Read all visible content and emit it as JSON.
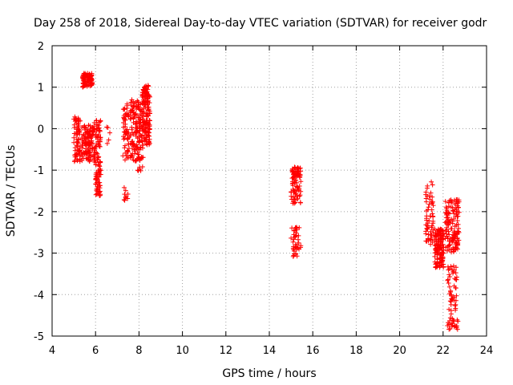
{
  "chart_data": {
    "type": "scatter",
    "title": "Day 258 of 2018, Sidereal Day-to-day VTEC variation (SDTVAR) for receiver godr",
    "xlabel": "GPS time / hours",
    "ylabel": "SDTVAR / TECUs",
    "xlim": [
      4,
      24
    ],
    "ylim": [
      -5,
      2
    ],
    "xticks": [
      4,
      6,
      8,
      10,
      12,
      14,
      16,
      18,
      20,
      22,
      24
    ],
    "yticks": [
      -5,
      -4,
      -3,
      -2,
      -1,
      0,
      1,
      2
    ],
    "grid": true,
    "marker": "+",
    "color": "#ff0000",
    "clusters": [
      {
        "x": [
          5.0,
          5.3
        ],
        "y": [
          -0.8,
          0.3
        ],
        "n": 70
      },
      {
        "x": [
          5.35,
          5.9
        ],
        "y": [
          -0.8,
          0.1
        ],
        "n": 110
      },
      {
        "x": [
          5.4,
          5.85
        ],
        "y": [
          1.0,
          1.35
        ],
        "n": 90
      },
      {
        "x": [
          5.9,
          6.25
        ],
        "y": [
          -0.9,
          0.2
        ],
        "n": 70
      },
      {
        "x": [
          6.0,
          6.25
        ],
        "y": [
          -1.65,
          -0.9
        ],
        "n": 45
      },
      {
        "x": [
          6.5,
          6.7
        ],
        "y": [
          -0.5,
          0.1
        ],
        "n": 5
      },
      {
        "x": [
          7.25,
          7.55
        ],
        "y": [
          -0.8,
          0.6
        ],
        "n": 60
      },
      {
        "x": [
          7.3,
          7.5
        ],
        "y": [
          -1.75,
          -1.3
        ],
        "n": 10
      },
      {
        "x": [
          7.6,
          8.0
        ],
        "y": [
          -0.8,
          0.7
        ],
        "n": 100
      },
      {
        "x": [
          7.9,
          8.2
        ],
        "y": [
          -1.05,
          -0.4
        ],
        "n": 20
      },
      {
        "x": [
          8.0,
          8.5
        ],
        "y": [
          -0.4,
          0.6
        ],
        "n": 120
      },
      {
        "x": [
          8.15,
          8.5
        ],
        "y": [
          0.55,
          1.05
        ],
        "n": 60
      },
      {
        "x": [
          15.0,
          15.45
        ],
        "y": [
          -1.8,
          -0.9
        ],
        "n": 90
      },
      {
        "x": [
          15.0,
          15.45
        ],
        "y": [
          -3.1,
          -2.35
        ],
        "n": 40
      },
      {
        "x": [
          21.2,
          21.55
        ],
        "y": [
          -2.8,
          -1.25
        ],
        "n": 60
      },
      {
        "x": [
          21.6,
          22.05
        ],
        "y": [
          -3.35,
          -2.4
        ],
        "n": 130
      },
      {
        "x": [
          22.1,
          22.75
        ],
        "y": [
          -3.0,
          -1.7
        ],
        "n": 140
      },
      {
        "x": [
          22.2,
          22.7
        ],
        "y": [
          -4.85,
          -3.3
        ],
        "n": 70
      }
    ]
  }
}
